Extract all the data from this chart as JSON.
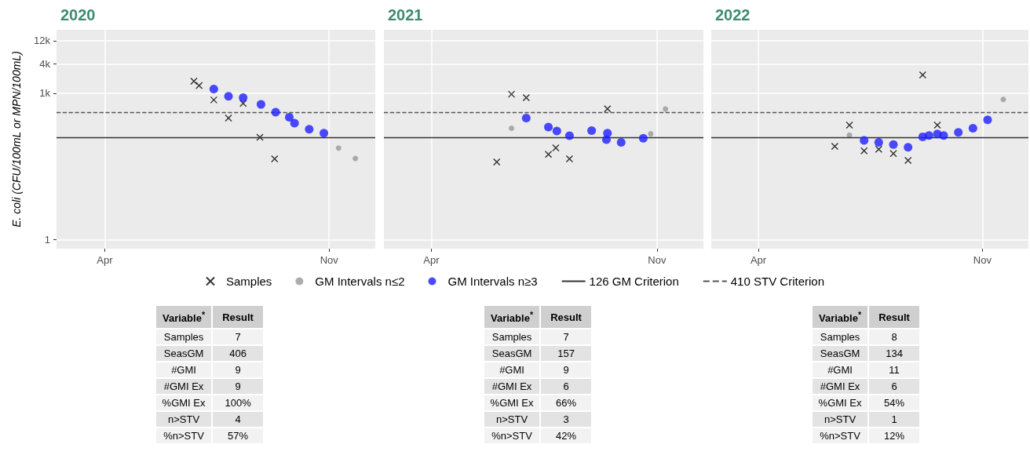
{
  "chart_data": [
    {
      "type": "scatter",
      "title": "2020",
      "ylabel": "E. coli (CFU/100mL or MPN/100mL)",
      "log": true,
      "grid": true,
      "legend": "bottom",
      "xlim": [
        "2020-02-15",
        "2020-12-15"
      ],
      "xticks": [
        {
          "value": "2020-04-01",
          "label": "Apr"
        },
        {
          "value": "2020-11-01",
          "label": "Nov"
        }
      ],
      "ylim": [
        0.65,
        20000
      ],
      "yticks": [
        1,
        {
          "value": 1000,
          "label": "1k"
        },
        {
          "value": 4000,
          "label": "4k"
        },
        {
          "value": 12000,
          "label": "12k"
        }
      ],
      "series": [
        {
          "name": "Samples",
          "marker": "cross",
          "color": "#000000",
          "x": [
            "2020-06-25",
            "2020-06-30",
            "2020-07-14",
            "2020-07-28",
            "2020-08-11",
            "2020-08-27",
            "2020-09-10"
          ],
          "values": [
            1770,
            1440,
            730,
            310,
            620,
            125,
            45
          ]
        },
        {
          "name": "GM Intervals n≤2",
          "marker": "circle",
          "color": "#999999",
          "x": [
            "2020-11-10",
            "2020-11-26"
          ],
          "values": [
            75,
            46
          ]
        },
        {
          "name": "GM Intervals n≥3",
          "marker": "circle",
          "color": "#1f1fff",
          "x": [
            "2020-07-14",
            "2020-07-28",
            "2020-08-11",
            "2020-08-28",
            "2020-09-11",
            "2020-09-24",
            "2020-09-29",
            "2020-10-13",
            "2020-10-27"
          ],
          "values": [
            1220,
            865,
            810,
            590,
            410,
            323,
            244,
            183,
            152
          ]
        }
      ],
      "ref_lines": [
        {
          "axis": "y",
          "value": 126,
          "label": "126 GM Criterion",
          "color": "#333333",
          "line_style": "solid"
        },
        {
          "axis": "y",
          "value": 410,
          "label": "410 STV Criterion",
          "color": "#555555",
          "line_style": "dashed"
        }
      ]
    },
    {
      "type": "scatter",
      "title": "2021",
      "log": true,
      "grid": true,
      "tick_labels": "x",
      "xlim": [
        "2021-02-15",
        "2021-12-15"
      ],
      "xticks": [
        {
          "value": "2021-04-01",
          "label": "Apr"
        },
        {
          "value": "2021-11-01",
          "label": "Nov"
        }
      ],
      "ylim": [
        0.65,
        20000
      ],
      "yticks": [
        1,
        1000,
        4000,
        12000
      ],
      "series": [
        {
          "marker": "cross",
          "color": "#000000",
          "x": [
            "2021-06-02",
            "2021-06-16",
            "2021-06-30",
            "2021-07-21",
            "2021-07-28",
            "2021-08-10",
            "2021-09-15"
          ],
          "values": [
            39,
            955,
            812,
            56,
            76,
            45,
            479
          ]
        },
        {
          "marker": "circle",
          "color": "#999999",
          "x": [
            "2021-06-16",
            "2021-10-26",
            "2021-11-09"
          ],
          "values": [
            192,
            147,
            473
          ]
        },
        {
          "marker": "circle",
          "color": "#1f1fff",
          "x": [
            "2021-06-30",
            "2021-07-21",
            "2021-07-29",
            "2021-08-10",
            "2021-08-31",
            "2021-09-15",
            "2021-09-14",
            "2021-09-28",
            "2021-10-19"
          ],
          "values": [
            311,
            202,
            168,
            135,
            172,
            152,
            112,
            98,
            119
          ]
        }
      ],
      "ref_lines": [
        {
          "axis": "y",
          "value": 126,
          "color": "#333333",
          "line_style": "solid"
        },
        {
          "axis": "y",
          "value": 410,
          "color": "#555555",
          "line_style": "dashed"
        }
      ]
    },
    {
      "type": "scatter",
      "title": "2022",
      "log": true,
      "grid": true,
      "tick_labels": "x",
      "xlim": [
        "2022-02-15",
        "2022-12-15"
      ],
      "xticks": [
        {
          "value": "2022-04-01",
          "label": "Apr"
        },
        {
          "value": "2022-11-01",
          "label": "Nov"
        }
      ],
      "ylim": [
        0.65,
        20000
      ],
      "yticks": [
        1,
        1000,
        4000,
        12000
      ],
      "series": [
        {
          "marker": "cross",
          "color": "#000000",
          "x": [
            "2022-06-13",
            "2022-06-27",
            "2022-07-11",
            "2022-07-25",
            "2022-08-08",
            "2022-08-22",
            "2022-09-05",
            "2022-09-19"
          ],
          "values": [
            82,
            223,
            66,
            71,
            58,
            42,
            2380,
            223
          ]
        },
        {
          "marker": "circle",
          "color": "#999999",
          "x": [
            "2022-06-27",
            "2022-11-21"
          ],
          "values": [
            138,
            747
          ]
        },
        {
          "marker": "circle",
          "color": "#1f1fff",
          "x": [
            "2022-07-11",
            "2022-07-25",
            "2022-08-08",
            "2022-08-22",
            "2022-09-05",
            "2022-09-11",
            "2022-09-19",
            "2022-09-25",
            "2022-10-09",
            "2022-10-23",
            "2022-11-06"
          ],
          "values": [
            108,
            98,
            89,
            78,
            128,
            136,
            147,
            136,
            158,
            192,
            286
          ]
        }
      ],
      "ref_lines": [
        {
          "axis": "y",
          "value": 126,
          "color": "#333333",
          "line_style": "solid"
        },
        {
          "axis": "y",
          "value": 410,
          "color": "#555555",
          "line_style": "dashed"
        }
      ]
    },
    {
      "type": "other",
      "xlabel": "Variable$^{*}$",
      "ylabel": "Result",
      "categories": [
        "Samples",
        "SeasGM",
        "#GMI",
        "#GMI Ex",
        "%GMI Ex",
        "n>STV",
        "%n>STV"
      ],
      "value_labels": [
        "7",
        "406",
        "9",
        "9",
        "100%",
        "4",
        "57%"
      ]
    },
    {
      "type": "other",
      "xlabel": "Variable$^{*}$",
      "ylabel": "Result",
      "categories": [
        "Samples",
        "SeasGM",
        "#GMI",
        "#GMI Ex",
        "%GMI Ex",
        "n>STV",
        "%n>STV"
      ],
      "value_labels": [
        "7",
        "157",
        "9",
        "6",
        "66%",
        "3",
        "42%"
      ]
    },
    {
      "type": "other",
      "xlabel": "Variable$^{*}$",
      "ylabel": "Result",
      "categories": [
        "Samples",
        "SeasGM",
        "#GMI",
        "#GMI Ex",
        "%GMI Ex",
        "n>STV",
        "%n>STV"
      ],
      "value_labels": [
        "8",
        "134",
        "11",
        "6",
        "54%",
        "1",
        "12%"
      ]
    }
  ]
}
